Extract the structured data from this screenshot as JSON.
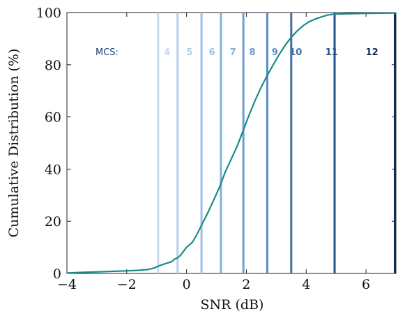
{
  "chart_data": {
    "type": "line",
    "xlabel": "SNR (dB)",
    "ylabel": "Cumulative Distribution (%)",
    "xlim": [
      -4,
      7
    ],
    "ylim": [
      0,
      100
    ],
    "xticks": [
      "−4",
      "−2",
      "0",
      "2",
      "4",
      "6"
    ],
    "xtick_values": [
      -4,
      -2,
      0,
      2,
      4,
      6
    ],
    "yticks": [
      "0",
      "20",
      "40",
      "60",
      "80",
      "100"
    ],
    "ytick_values": [
      0,
      20,
      40,
      60,
      80,
      100
    ],
    "grid": false,
    "line_color": "#1a8a8a",
    "series": [
      {
        "x": [
          -4,
          -3.5,
          -3,
          -2.5,
          -2,
          -1.6,
          -1.3,
          -1.1,
          -1.0,
          -0.9,
          -0.7,
          -0.5,
          -0.4,
          -0.3,
          -0.2,
          -0.1,
          0.0,
          0.2,
          0.35,
          0.5,
          0.7,
          0.9,
          1.1,
          1.3,
          1.5,
          1.7,
          1.9,
          2.1,
          2.3,
          2.5,
          2.7,
          2.9,
          3.1,
          3.3,
          3.5,
          3.7,
          3.9,
          4.1,
          4.3,
          4.5,
          4.7,
          4.95,
          5.2,
          6.0,
          7.0
        ],
        "y": [
          0.2,
          0.4,
          0.6,
          0.8,
          1.0,
          1.2,
          1.5,
          2.0,
          2.5,
          3.0,
          3.8,
          4.5,
          5.5,
          6.0,
          7.0,
          8.5,
          10.0,
          12.0,
          15.0,
          18.5,
          23.0,
          28.0,
          33.0,
          39.0,
          44.0,
          49.0,
          55.0,
          61.0,
          66.5,
          71.5,
          76.0,
          80.0,
          84.0,
          87.5,
          90.5,
          93.0,
          95.0,
          96.5,
          97.5,
          98.3,
          99.0,
          99.4,
          99.5,
          99.7,
          99.8
        ]
      }
    ],
    "mcs_prefix": "MCS:",
    "mcs_y": 85,
    "mcs_lines": [
      {
        "label": "4",
        "x": -0.95,
        "color": "#c6dcf0",
        "label_x": -0.65
      },
      {
        "label": "5",
        "x": -0.3,
        "color": "#b3cfea",
        "label_x": 0.1
      },
      {
        "label": "6",
        "x": 0.5,
        "color": "#9dbfe3",
        "label_x": 0.85
      },
      {
        "label": "7",
        "x": 1.15,
        "color": "#86aedb",
        "label_x": 1.55
      },
      {
        "label": "8",
        "x": 1.9,
        "color": "#6f9dd2",
        "label_x": 2.2
      },
      {
        "label": "9",
        "x": 2.7,
        "color": "#5a8cc8",
        "label_x": 2.95
      },
      {
        "label": "10",
        "x": 3.5,
        "color": "#3f6fa9",
        "label_x": 3.65
      },
      {
        "label": "11",
        "x": 4.95,
        "color": "#25518b",
        "label_x": 4.85
      },
      {
        "label": "12",
        "x": 7.0,
        "color": "#0f2b5c",
        "label_x": 6.2
      }
    ]
  }
}
